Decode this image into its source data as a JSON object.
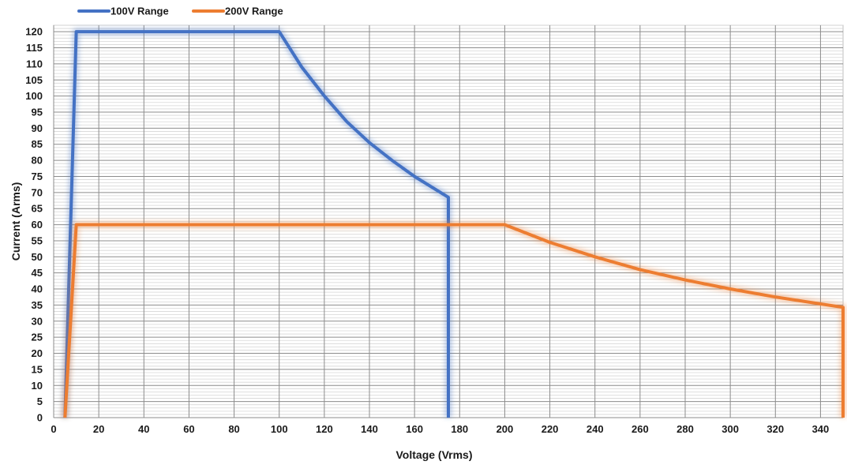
{
  "chart_data": {
    "type": "line",
    "title": "",
    "xlabel": "Voltage (Vrms)",
    "ylabel": "Current (Arms)",
    "xlim": [
      0,
      350
    ],
    "ylim": [
      0,
      122
    ],
    "x_ticks": [
      0,
      20,
      40,
      60,
      80,
      100,
      120,
      140,
      160,
      180,
      200,
      220,
      240,
      260,
      280,
      300,
      320,
      340
    ],
    "y_ticks": [
      0,
      5,
      10,
      15,
      20,
      25,
      30,
      35,
      40,
      45,
      50,
      55,
      60,
      65,
      70,
      75,
      80,
      85,
      90,
      95,
      100,
      105,
      110,
      115,
      120
    ],
    "x_grid": true,
    "y_grid": true,
    "y_minor_grid": true,
    "legend_position": "top-left",
    "series": [
      {
        "name": "100V Range",
        "color": "#4472c4",
        "points": [
          [
            5,
            0
          ],
          [
            10,
            120
          ],
          [
            100,
            120
          ],
          [
            110,
            109
          ],
          [
            120,
            100
          ],
          [
            130,
            92
          ],
          [
            140,
            85.5
          ],
          [
            150,
            80
          ],
          [
            160,
            75
          ],
          [
            175,
            68.5
          ],
          [
            175,
            0
          ]
        ]
      },
      {
        "name": "200V Range",
        "color": "#ed7d31",
        "points": [
          [
            5,
            0
          ],
          [
            10,
            60
          ],
          [
            200,
            60
          ],
          [
            220,
            54.5
          ],
          [
            240,
            50
          ],
          [
            260,
            46
          ],
          [
            280,
            42.8
          ],
          [
            300,
            40
          ],
          [
            320,
            37.5
          ],
          [
            350,
            34.3
          ],
          [
            350,
            0
          ]
        ]
      }
    ]
  }
}
